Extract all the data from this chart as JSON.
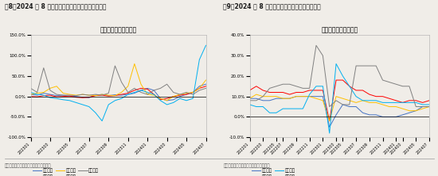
{
  "fig8_title": "单月寿险保费同比增速",
  "fig8_header": "图8：2024 年 8 月部分上市险企寿险保费同比正增长",
  "fig8_footer": "数据来源：各公司公告、开源证券研究所",
  "fig8_ylim": [
    -100.0,
    150.0
  ],
  "fig8_yticks": [
    -100.0,
    -50.0,
    0.0,
    50.0,
    100.0,
    150.0
  ],
  "fig8_series": {
    "中国人寿": {
      "color": "#4472C4",
      "data": [
        5,
        3,
        8,
        5,
        2,
        3,
        1,
        0,
        -2,
        -3,
        3,
        5,
        2,
        4,
        3,
        5,
        8,
        15,
        20,
        15,
        -5,
        -10,
        -8,
        0,
        5,
        10,
        25,
        30
      ]
    },
    "中国平安": {
      "color": "#FF0000",
      "data": [
        0,
        -1,
        2,
        3,
        -1,
        0,
        1,
        -2,
        -3,
        -2,
        2,
        3,
        1,
        2,
        5,
        8,
        15,
        20,
        18,
        5,
        -8,
        -5,
        0,
        3,
        5,
        10,
        20,
        25
      ]
    },
    "中国太保": {
      "color": "#FFC000",
      "data": [
        5,
        8,
        10,
        20,
        25,
        8,
        5,
        3,
        5,
        3,
        2,
        5,
        3,
        2,
        10,
        25,
        80,
        30,
        5,
        3,
        -5,
        -10,
        0,
        5,
        8,
        10,
        20,
        40
      ]
    },
    "新华保险": {
      "color": "#00B0F0",
      "data": [
        10,
        5,
        3,
        -3,
        -5,
        -8,
        -10,
        -15,
        -20,
        -25,
        -40,
        -60,
        -20,
        -10,
        -5,
        5,
        10,
        15,
        10,
        5,
        -10,
        -20,
        -15,
        -5,
        -10,
        -5,
        90,
        125
      ]
    },
    "中国人保": {
      "color": "#808080",
      "data": [
        20,
        10,
        70,
        15,
        5,
        3,
        3,
        2,
        5,
        3,
        5,
        3,
        8,
        75,
        35,
        10,
        20,
        10,
        5,
        15,
        20,
        30,
        10,
        5,
        10,
        5,
        15,
        20
      ]
    }
  },
  "fig8_xticklabels": [
    "202301",
    "202303",
    "202305",
    "202307",
    "202309",
    "202311",
    "202401",
    "202403",
    "202405",
    "202407"
  ],
  "fig9_title": "累计财险保费同比增速",
  "fig9_header": "图9：2024 年 8 月上市险金财险保费同比增速分化",
  "fig9_footer": "数据来源：各公司公告、开源证券研究所",
  "fig9_ylim": [
    -10.0,
    40.0
  ],
  "fig9_yticks": [
    -10.0,
    0.0,
    10.0,
    20.0,
    30.0,
    40.0
  ],
  "fig9_series": {
    "平安财险": {
      "color": "#4472C4",
      "data": [
        9,
        9,
        8,
        8,
        9,
        9,
        9,
        10,
        10,
        10,
        10,
        10,
        -5,
        1,
        6,
        5,
        5,
        2,
        1,
        1,
        0,
        0,
        0,
        1,
        2,
        3,
        5,
        5
      ]
    },
    "太保财险": {
      "color": "#FF0000",
      "data": [
        13,
        15,
        13,
        12,
        12,
        12,
        11,
        12,
        12,
        13,
        13,
        13,
        -2,
        18,
        18,
        15,
        13,
        13,
        11,
        10,
        10,
        9,
        8,
        7,
        8,
        8,
        7,
        8
      ]
    },
    "人保财险": {
      "color": "#FFC000",
      "data": [
        9,
        11,
        10,
        10,
        10,
        9,
        9,
        10,
        10,
        10,
        9,
        8,
        -2,
        10,
        9,
        8,
        7,
        8,
        7,
        7,
        6,
        5,
        5,
        4,
        3,
        3,
        4,
        5
      ]
    },
    "太平财险": {
      "color": "#00B0F0",
      "data": [
        6,
        5,
        5,
        2,
        2,
        4,
        4,
        4,
        4,
        11,
        15,
        15,
        -8,
        26,
        20,
        15,
        10,
        8,
        8,
        8,
        7,
        7,
        7,
        7,
        7,
        7,
        6,
        6
      ]
    },
    "众安在线": {
      "color": "#808080",
      "data": [
        8,
        8,
        10,
        14,
        15,
        16,
        16,
        15,
        14,
        14,
        35,
        30,
        5,
        8,
        6,
        6,
        25,
        25,
        25,
        25,
        18,
        17,
        16,
        15,
        15,
        5,
        5,
        5
      ]
    }
  },
  "fig9_xticklabels": [
    "202201",
    "202203",
    "202205",
    "202207",
    "202209",
    "202211",
    "202301",
    "202303",
    "202305",
    "202307",
    "202309",
    "202311",
    "202401",
    "202403",
    "202405",
    "202407"
  ],
  "bg_color": "#f0ede8",
  "header_color": "#1a1a1a",
  "footer_color": "#555555",
  "divider_color": "#999999"
}
